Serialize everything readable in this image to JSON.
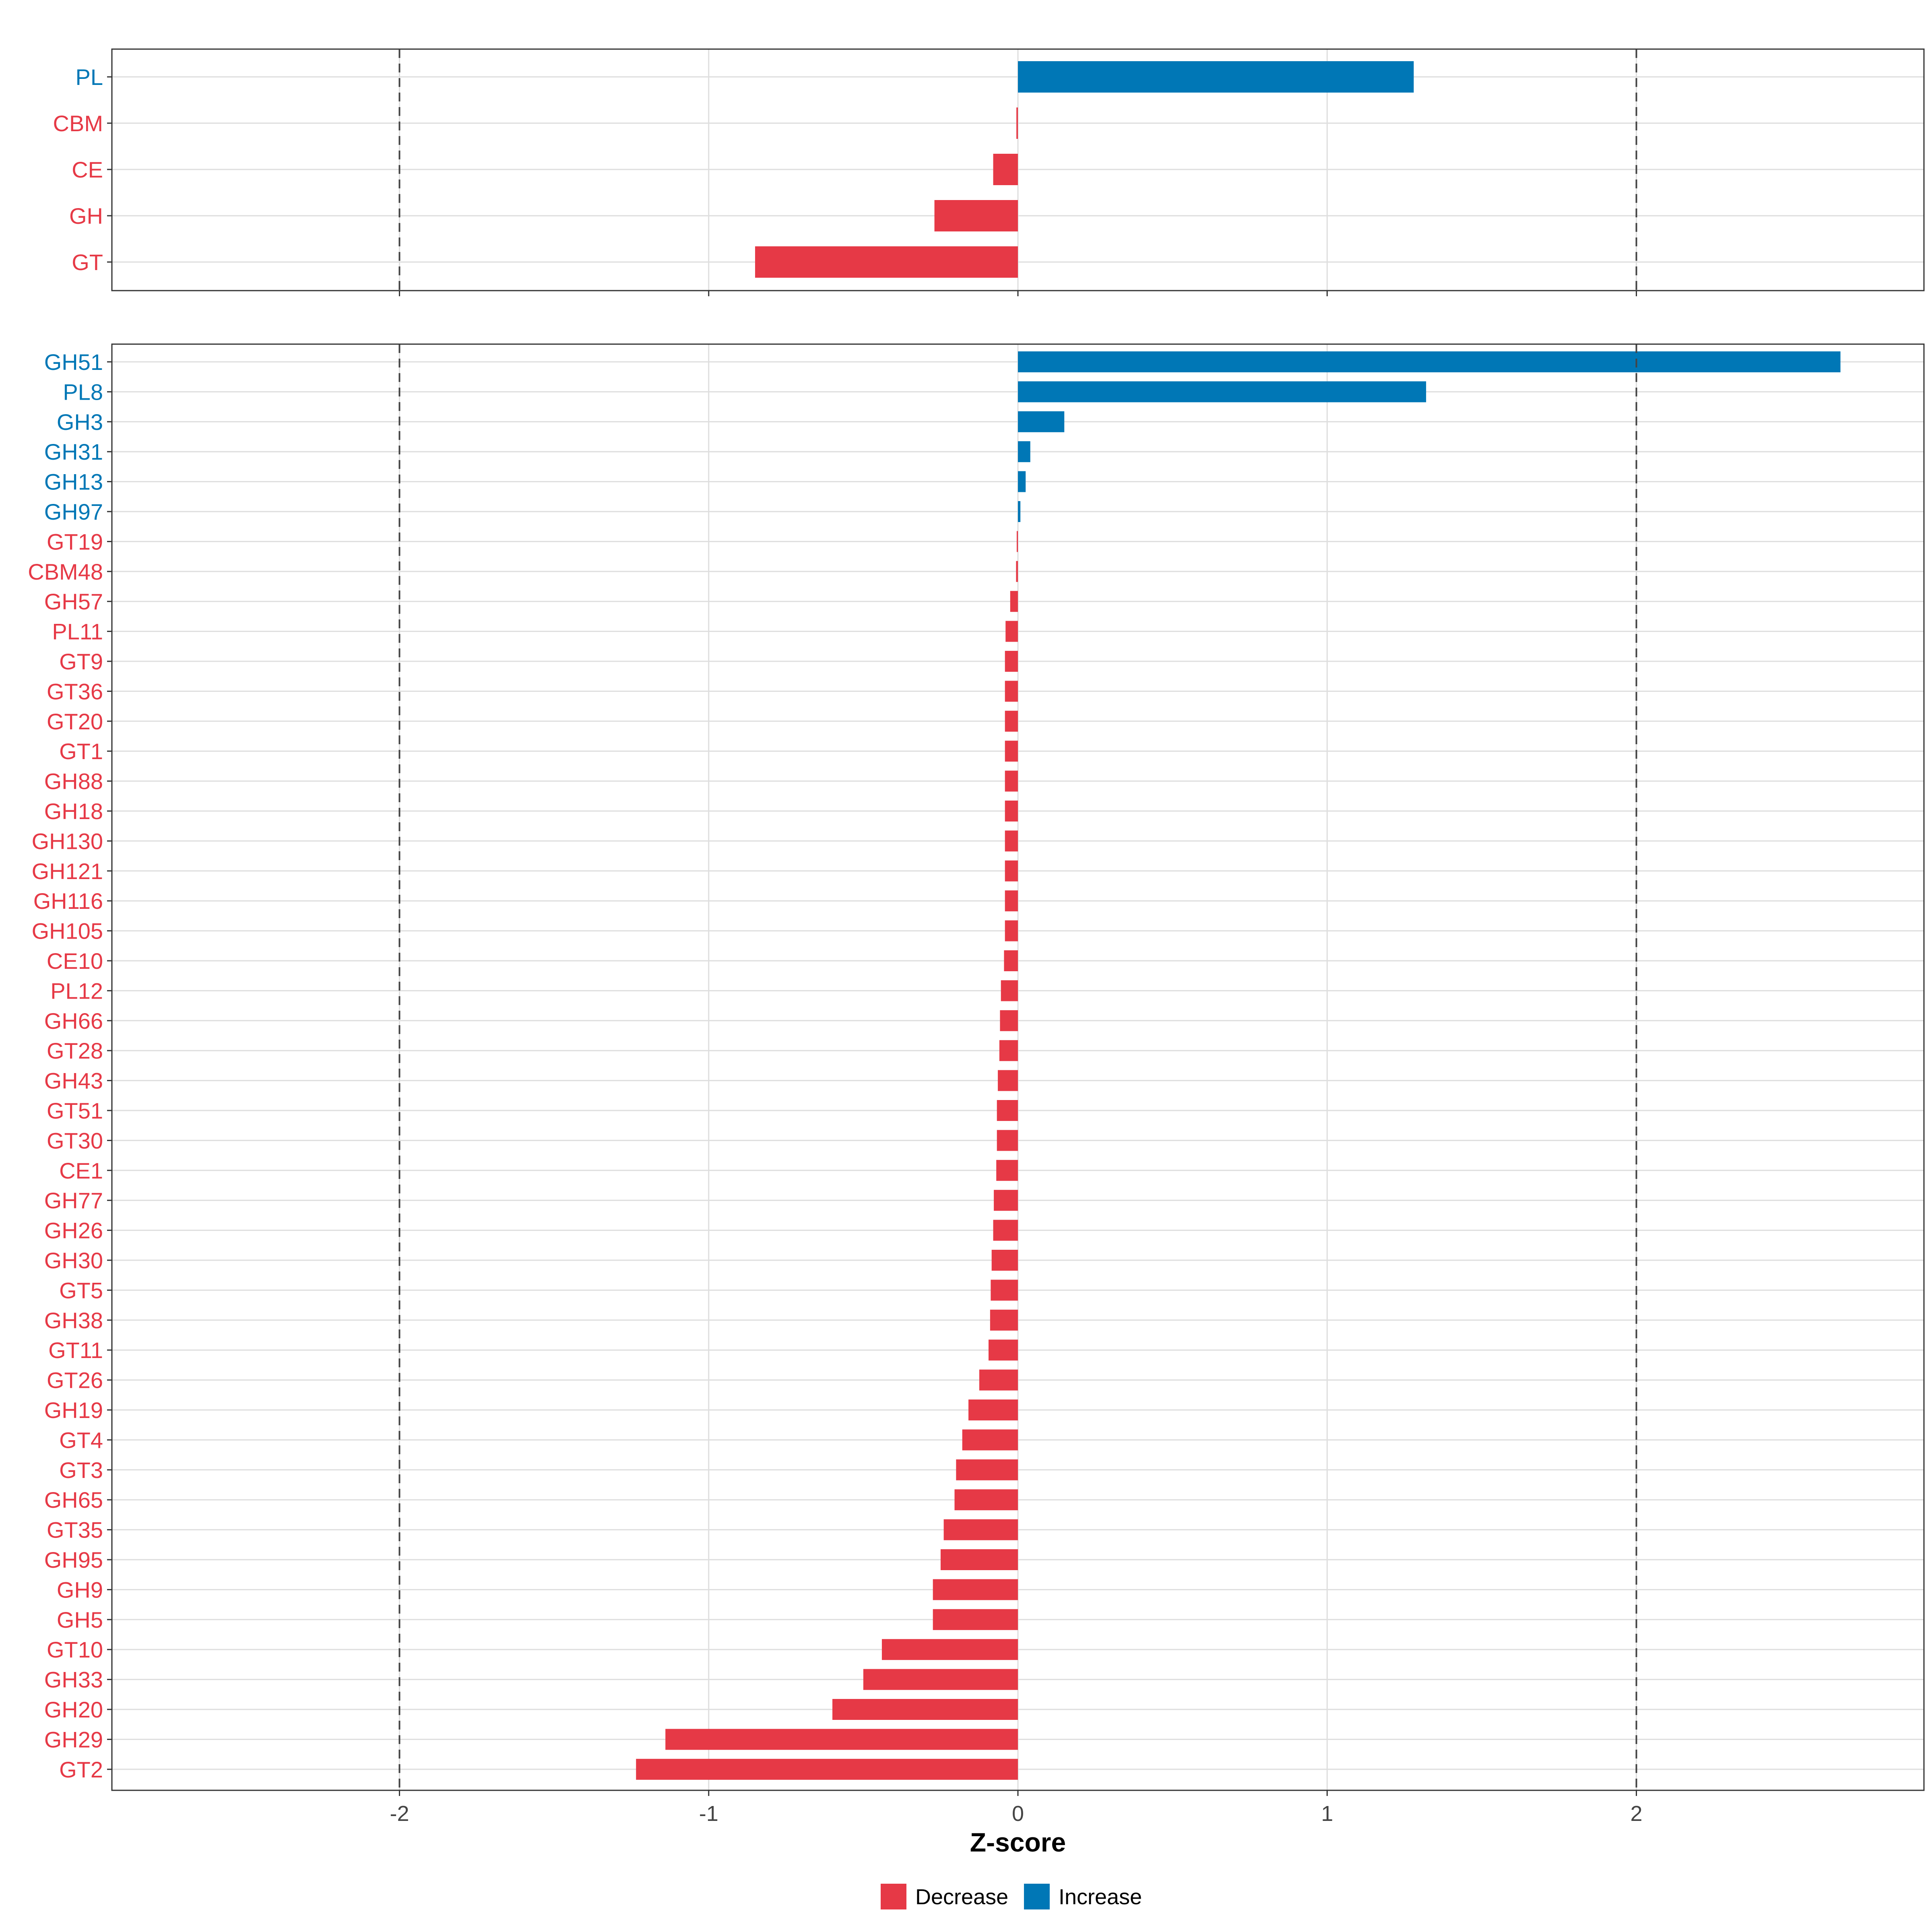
{
  "chart_data": [
    {
      "type": "bar",
      "orientation": "horizontal",
      "panel": "top",
      "categories": [
        "PL",
        "CBM",
        "CE",
        "GH",
        "GT"
      ],
      "values": [
        1.28,
        -0.005,
        -0.08,
        -0.27,
        -0.85
      ],
      "groups": [
        "Increase",
        "Decrease",
        "Decrease",
        "Decrease",
        "Decrease"
      ],
      "xlim": [
        -2.93,
        2.93
      ],
      "reference_lines": [
        -2,
        2
      ],
      "grid": true
    },
    {
      "type": "bar",
      "orientation": "horizontal",
      "panel": "bottom",
      "categories": [
        "GH51",
        "PL8",
        "GH3",
        "GH31",
        "GH13",
        "GH97",
        "GT19",
        "CBM48",
        "GH57",
        "PL11",
        "GT9",
        "GT36",
        "GT20",
        "GT1",
        "GH88",
        "GH18",
        "GH130",
        "GH121",
        "GH116",
        "GH105",
        "CE10",
        "PL12",
        "GH66",
        "GT28",
        "GH43",
        "GT51",
        "GT30",
        "CE1",
        "GH77",
        "GH26",
        "GH30",
        "GT5",
        "GH38",
        "GT11",
        "GT26",
        "GH19",
        "GT4",
        "GT3",
        "GH65",
        "GT35",
        "GH95",
        "GH9",
        "GH5",
        "GT10",
        "GH33",
        "GH20",
        "GH29",
        "GT2"
      ],
      "values": [
        2.66,
        1.32,
        0.15,
        0.04,
        0.025,
        0.008,
        -0.002,
        -0.006,
        -0.025,
        -0.04,
        -0.042,
        -0.042,
        -0.042,
        -0.042,
        -0.042,
        -0.042,
        -0.042,
        -0.042,
        -0.042,
        -0.042,
        -0.045,
        -0.055,
        -0.058,
        -0.06,
        -0.065,
        -0.068,
        -0.068,
        -0.07,
        -0.078,
        -0.08,
        -0.085,
        -0.088,
        -0.09,
        -0.095,
        -0.125,
        -0.16,
        -0.18,
        -0.2,
        -0.205,
        -0.24,
        -0.25,
        -0.275,
        -0.275,
        -0.44,
        -0.5,
        -0.6,
        -1.14,
        -1.235
      ],
      "groups": [
        "Increase",
        "Increase",
        "Increase",
        "Increase",
        "Increase",
        "Increase",
        "Decrease",
        "Decrease",
        "Decrease",
        "Decrease",
        "Decrease",
        "Decrease",
        "Decrease",
        "Decrease",
        "Decrease",
        "Decrease",
        "Decrease",
        "Decrease",
        "Decrease",
        "Decrease",
        "Decrease",
        "Decrease",
        "Decrease",
        "Decrease",
        "Decrease",
        "Decrease",
        "Decrease",
        "Decrease",
        "Decrease",
        "Decrease",
        "Decrease",
        "Decrease",
        "Decrease",
        "Decrease",
        "Decrease",
        "Decrease",
        "Decrease",
        "Decrease",
        "Decrease",
        "Decrease",
        "Decrease",
        "Decrease",
        "Decrease",
        "Decrease",
        "Decrease",
        "Decrease",
        "Decrease",
        "Decrease"
      ],
      "xlim": [
        -2.93,
        2.93
      ],
      "reference_lines": [
        -2,
        2
      ],
      "grid": true
    }
  ],
  "x_axis": {
    "label": "Z-score",
    "ticks": [
      -2,
      -1,
      0,
      1,
      2
    ],
    "tick_labels": [
      "-2",
      "-1",
      "0",
      "1",
      "2"
    ]
  },
  "legend": {
    "placement": "bottom",
    "items": [
      {
        "label": "Decrease",
        "color": "#E63946"
      },
      {
        "label": "Increase",
        "color": "#0077B6"
      }
    ]
  },
  "colors": {
    "Decrease": "#E63946",
    "Increase": "#0077B6",
    "grid": "#DEDEDE",
    "panel_border": "#333333",
    "ref_line": "#444444"
  }
}
